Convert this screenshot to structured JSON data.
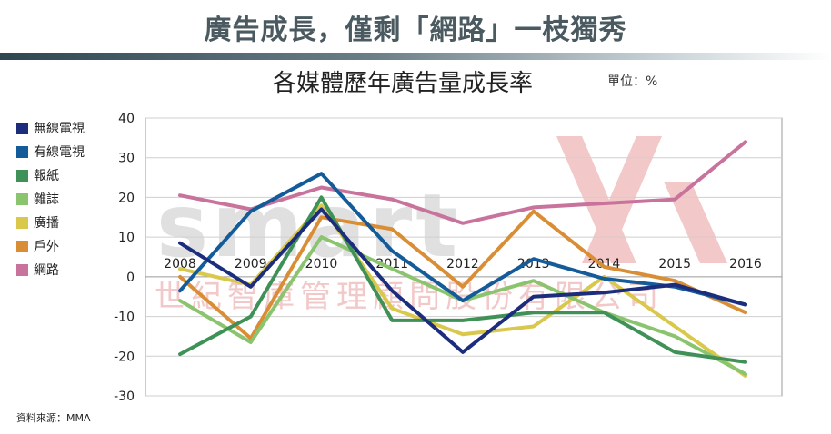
{
  "headline": "廣告成長，僅剩「網路」一枝獨秀",
  "unit_label": "單位：%",
  "source": "資料來源：MMA",
  "watermark": {
    "brand": "smart",
    "company": "世紀智庫管理顧問股份有限公司",
    "brand_color": "#e0e0e0",
    "company_color": "#f2c8c8"
  },
  "chart_data": {
    "type": "line",
    "title": "各媒體歷年廣告量成長率",
    "xlabel": "",
    "ylabel": "",
    "ylim": [
      -30,
      40
    ],
    "yticks": [
      40,
      30,
      20,
      10,
      0,
      -10,
      -20,
      -30
    ],
    "grid": true,
    "legend_position": "left",
    "categories": [
      "2008",
      "2009",
      "2010",
      "2011",
      "2012",
      "2013",
      "2014",
      "2015",
      "2016"
    ],
    "series": [
      {
        "name": "無線電視",
        "color": "#1b2d7c",
        "values": [
          8.5,
          -2.5,
          17,
          -3.5,
          -19,
          -5,
          -4,
          -2,
          -7
        ]
      },
      {
        "name": "有線電視",
        "color": "#145b99",
        "values": [
          -3.5,
          16.5,
          26,
          6.5,
          -6,
          4.5,
          -0.5,
          -2.5,
          -7
        ]
      },
      {
        "name": "報紙",
        "color": "#3f9157",
        "values": [
          -19.5,
          -10,
          20,
          -11,
          -11,
          -9,
          -9,
          -19,
          -21.5
        ]
      },
      {
        "name": "雜誌",
        "color": "#8bc46f",
        "values": [
          -6,
          -16.5,
          10,
          2,
          -6,
          -1,
          -9,
          -15,
          -24.5
        ]
      },
      {
        "name": "廣播",
        "color": "#d9c84b",
        "values": [
          2,
          -2,
          18,
          -8,
          -14.5,
          -12.5,
          0,
          -12.5,
          -25
        ]
      },
      {
        "name": "戶外",
        "color": "#d98e36",
        "values": [
          0,
          -15.5,
          15,
          12,
          -2.5,
          16.5,
          2.5,
          -1,
          -9
        ]
      },
      {
        "name": "網路",
        "color": "#c8739c",
        "values": [
          20.5,
          17,
          22.5,
          19.5,
          13.5,
          17.5,
          18.5,
          19.5,
          34
        ]
      }
    ]
  }
}
